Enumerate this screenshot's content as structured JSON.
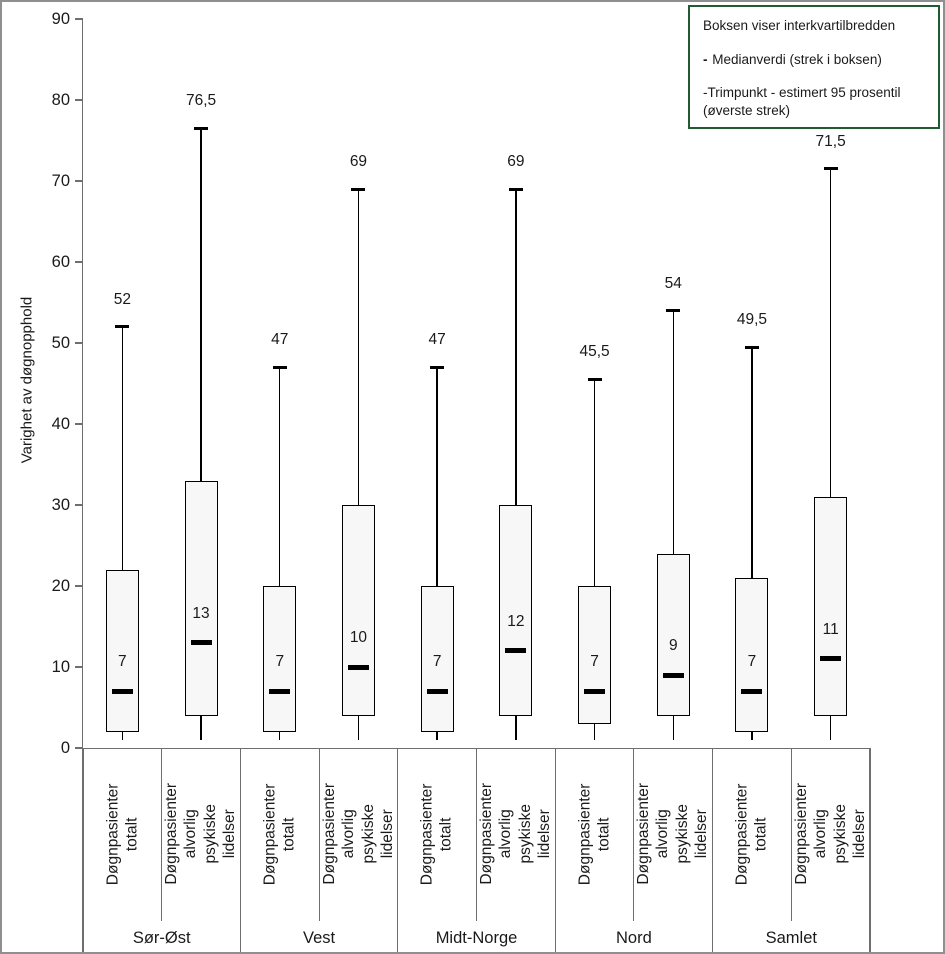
{
  "colors": {
    "axis": "#6e6e6e",
    "divider": "#6e6e6e",
    "box_border": "#000000",
    "box_fill": "#f7f7f7",
    "whisker": "#000000",
    "median": "#000000",
    "text": "#1a1a1a",
    "figure_border": "#8f8f8f",
    "legend_border": "#1f5c31"
  },
  "legend": {
    "title": "Boksen viser interkvartilbredden",
    "median_item": {
      "dash": "-",
      "text": " Medianverdi (strek i boksen)"
    },
    "trim_item": "-Trimpunkt - estimert 95 prosentil (øverste strek)"
  },
  "chart_data": {
    "type": "boxplot",
    "title": "",
    "ylabel": "Varighet av døgnopphold",
    "xlabel": "",
    "ylim": [
      0,
      90
    ],
    "yticks": [
      0,
      10,
      20,
      30,
      40,
      50,
      60,
      70,
      80,
      90
    ],
    "grid": false,
    "legend_position": "top-right",
    "groups": [
      "Sør-Øst",
      "Vest",
      "Midt-Norge",
      "Nord",
      "Samlet"
    ],
    "categories_per_group": [
      "Døgnpasienter totalt",
      "Døgnpasienter alvorlig psykiske lidelser"
    ],
    "boxes": [
      {
        "group": "Sør-Øst",
        "category": "Døgnpasienter totalt",
        "whisker_low": 1,
        "q1": 2,
        "median": 7,
        "q3": 22,
        "p95": 52,
        "median_label": "7",
        "p95_label": "52"
      },
      {
        "group": "Sør-Øst",
        "category": "Døgnpasienter alvorlig psykiske lidelser",
        "whisker_low": 1,
        "q1": 4,
        "median": 13,
        "q3": 33,
        "p95": 76.5,
        "median_label": "13",
        "p95_label": "76,5"
      },
      {
        "group": "Vest",
        "category": "Døgnpasienter totalt",
        "whisker_low": 1,
        "q1": 2,
        "median": 7,
        "q3": 20,
        "p95": 47,
        "median_label": "7",
        "p95_label": "47"
      },
      {
        "group": "Vest",
        "category": "Døgnpasienter alvorlig psykiske lidelser",
        "whisker_low": 1,
        "q1": 4,
        "median": 10,
        "q3": 30,
        "p95": 69,
        "median_label": "10",
        "p95_label": "69"
      },
      {
        "group": "Midt-Norge",
        "category": "Døgnpasienter totalt",
        "whisker_low": 1,
        "q1": 2,
        "median": 7,
        "q3": 20,
        "p95": 47,
        "median_label": "7",
        "p95_label": "47"
      },
      {
        "group": "Midt-Norge",
        "category": "Døgnpasienter alvorlig psykiske lidelser",
        "whisker_low": 1,
        "q1": 4,
        "median": 12,
        "q3": 30,
        "p95": 69,
        "median_label": "12",
        "p95_label": "69"
      },
      {
        "group": "Nord",
        "category": "Døgnpasienter totalt",
        "whisker_low": 1,
        "q1": 3,
        "median": 7,
        "q3": 20,
        "p95": 45.5,
        "median_label": "7",
        "p95_label": "45,5"
      },
      {
        "group": "Nord",
        "category": "Døgnpasienter alvorlig psykiske lidelser",
        "whisker_low": 1,
        "q1": 4,
        "median": 9,
        "q3": 24,
        "p95": 54,
        "median_label": "9",
        "p95_label": "54"
      },
      {
        "group": "Samlet",
        "category": "Døgnpasienter totalt",
        "whisker_low": 1,
        "q1": 2,
        "median": 7,
        "q3": 21,
        "p95": 49.5,
        "median_label": "7",
        "p95_label": "49,5"
      },
      {
        "group": "Samlet",
        "category": "Døgnpasienter alvorlig psykiske lidelser",
        "whisker_low": 1,
        "q1": 4,
        "median": 11,
        "q3": 31,
        "p95": 71.5,
        "median_label": "11",
        "p95_label": "71,5"
      }
    ]
  }
}
